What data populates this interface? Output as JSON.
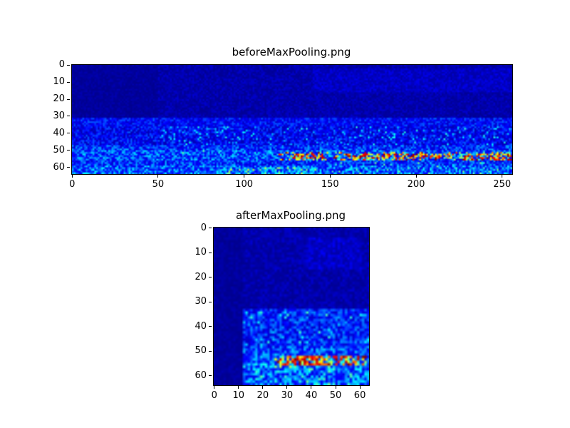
{
  "figure": {
    "background": "#ffffff",
    "text_color": "#000000",
    "axis_color": "#000000"
  },
  "chart_data": [
    {
      "type": "heatmap",
      "title": "beforeMaxPooling.png",
      "colormap": "jet",
      "rows": 64,
      "cols": 256,
      "x_ticks": [
        0,
        50,
        100,
        150,
        200,
        250
      ],
      "y_ticks": [
        0,
        10,
        20,
        30,
        40,
        50,
        60
      ],
      "x_range": [
        0,
        255
      ],
      "y_range": [
        0,
        63
      ],
      "value_range": [
        0,
        1
      ],
      "seed": 20240601,
      "regions": [
        {
          "r": [
            0,
            63
          ],
          "c": [
            0,
            255
          ],
          "base": 0.02,
          "amp": 0.06
        },
        {
          "r": [
            0,
            30
          ],
          "c": [
            0,
            49
          ],
          "base": 0.015,
          "amp": 0.035
        },
        {
          "r": [
            2,
            15
          ],
          "c": [
            140,
            255
          ],
          "base": 0.04,
          "amp": 0.07
        },
        {
          "r": [
            31,
            35
          ],
          "c": [
            0,
            255
          ],
          "base": 0.07,
          "amp": 0.15
        },
        {
          "r": [
            36,
            46
          ],
          "c": [
            0,
            255
          ],
          "base": 0.05,
          "amp": 0.17
        },
        {
          "r": [
            47,
            49
          ],
          "c": [
            0,
            255
          ],
          "base": 0.08,
          "amp": 0.22
        },
        {
          "r": [
            50,
            55
          ],
          "c": [
            0,
            255
          ],
          "base": 0.1,
          "amp": 0.25
        },
        {
          "r": [
            56,
            58
          ],
          "c": [
            0,
            255
          ],
          "base": 0.08,
          "amp": 0.22
        },
        {
          "r": [
            59,
            63
          ],
          "c": [
            0,
            255
          ],
          "base": 0.1,
          "amp": 0.28
        }
      ],
      "spots": [
        {
          "r": [
            51,
            55
          ],
          "c": [
            120,
            255
          ],
          "p": 0.3,
          "v": [
            0.35,
            1.0
          ]
        },
        {
          "r": [
            52,
            54
          ],
          "c": [
            128,
            145
          ],
          "p": 0.65,
          "v": [
            0.5,
            1.0
          ]
        },
        {
          "r": [
            52,
            54
          ],
          "c": [
            160,
            220
          ],
          "p": 0.5,
          "v": [
            0.45,
            1.0
          ]
        },
        {
          "r": [
            52,
            55
          ],
          "c": [
            225,
            255
          ],
          "p": 0.45,
          "v": [
            0.4,
            1.0
          ]
        },
        {
          "r": [
            50,
            51
          ],
          "c": [
            60,
            115
          ],
          "p": 0.15,
          "v": [
            0.25,
            0.55
          ]
        },
        {
          "r": [
            60,
            63
          ],
          "c": [
            90,
            145
          ],
          "p": 0.3,
          "v": [
            0.2,
            0.6
          ]
        },
        {
          "r": [
            57,
            63
          ],
          "c": [
            150,
            255
          ],
          "p": 0.12,
          "v": [
            0.2,
            0.5
          ]
        },
        {
          "r": [
            36,
            46
          ],
          "c": [
            50,
            255
          ],
          "p": 0.08,
          "v": [
            0.2,
            0.42
          ]
        }
      ]
    },
    {
      "type": "heatmap",
      "title": "afterMaxPooling.png",
      "colormap": "jet",
      "rows": 64,
      "cols": 64,
      "x_ticks": [
        0,
        10,
        20,
        30,
        40,
        50,
        60
      ],
      "y_ticks": [
        0,
        10,
        20,
        30,
        40,
        50,
        60
      ],
      "x_range": [
        0,
        63
      ],
      "y_range": [
        0,
        63
      ],
      "value_range": [
        0,
        1
      ],
      "seed": 987654,
      "regions": [
        {
          "r": [
            0,
            63
          ],
          "c": [
            0,
            63
          ],
          "base": 0.02,
          "amp": 0.06
        },
        {
          "r": [
            0,
            63
          ],
          "c": [
            0,
            11
          ],
          "base": 0.015,
          "amp": 0.035
        },
        {
          "r": [
            4,
            16
          ],
          "c": [
            38,
            60
          ],
          "base": 0.04,
          "amp": 0.08
        },
        {
          "r": [
            33,
            47
          ],
          "c": [
            12,
            63
          ],
          "base": 0.07,
          "amp": 0.2
        },
        {
          "r": [
            48,
            51
          ],
          "c": [
            12,
            63
          ],
          "base": 0.09,
          "amp": 0.24
        },
        {
          "r": [
            52,
            56
          ],
          "c": [
            12,
            63
          ],
          "base": 0.12,
          "amp": 0.28
        },
        {
          "r": [
            57,
            63
          ],
          "c": [
            12,
            63
          ],
          "base": 0.1,
          "amp": 0.28
        }
      ],
      "spots": [
        {
          "r": [
            52,
            55
          ],
          "c": [
            22,
            63
          ],
          "p": 0.4,
          "v": [
            0.35,
            1.0
          ]
        },
        {
          "r": [
            52,
            55
          ],
          "c": [
            30,
            50
          ],
          "p": 0.65,
          "v": [
            0.5,
            1.0
          ]
        },
        {
          "r": [
            56,
            57
          ],
          "c": [
            25,
            55
          ],
          "p": 0.25,
          "v": [
            0.25,
            0.6
          ]
        },
        {
          "r": [
            34,
            47
          ],
          "c": [
            12,
            63
          ],
          "p": 0.1,
          "v": [
            0.2,
            0.45
          ]
        },
        {
          "r": [
            58,
            63
          ],
          "c": [
            12,
            63
          ],
          "p": 0.15,
          "v": [
            0.2,
            0.5
          ]
        }
      ]
    }
  ]
}
